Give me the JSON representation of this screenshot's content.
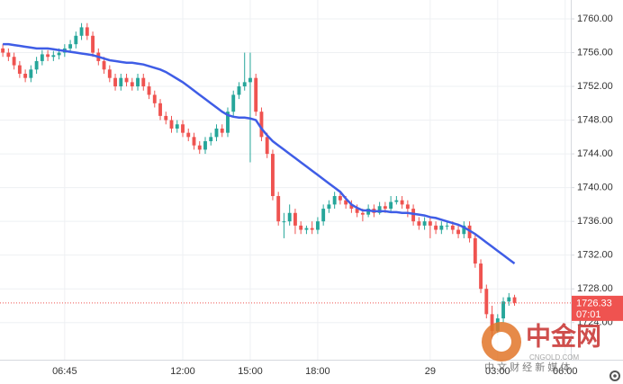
{
  "chart_data": {
    "type": "candlestick",
    "xlim": [
      -0.5,
      101
    ],
    "ylim": [
      1719.6,
      1762.24
    ],
    "grid": true,
    "xticks": [
      {
        "value": 11,
        "label": "06:45"
      },
      {
        "value": 32,
        "label": "12:00"
      },
      {
        "value": 44,
        "label": "15:00"
      },
      {
        "value": 56,
        "label": "18:00"
      },
      {
        "value": 76,
        "label": "29"
      },
      {
        "value": 88,
        "label": "03:00"
      },
      {
        "value": 100,
        "label": "06:00"
      }
    ],
    "yticks": [
      {
        "value": 1724,
        "label": "1724.00"
      },
      {
        "value": 1728,
        "label": "1728.00"
      },
      {
        "value": 1732,
        "label": "1732.00"
      },
      {
        "value": 1736,
        "label": "1736.00"
      },
      {
        "value": 1740,
        "label": "1740.00"
      },
      {
        "value": 1744,
        "label": "1744.00"
      },
      {
        "value": 1748,
        "label": "1748.00"
      },
      {
        "value": 1752,
        "label": "1752.00"
      },
      {
        "value": 1756,
        "label": "1756.00"
      },
      {
        "value": 1760,
        "label": "1760.00"
      }
    ],
    "candles": {
      "up_color": "#26a69a",
      "down_color": "#ef5350",
      "ohlc": [
        [
          1756.5,
          1757,
          1755.5,
          1756
        ],
        [
          1756,
          1756.5,
          1755,
          1755.5
        ],
        [
          1755.5,
          1756,
          1754,
          1754.5
        ],
        [
          1754.5,
          1755,
          1753,
          1753.5
        ],
        [
          1753.5,
          1754,
          1752.5,
          1753
        ],
        [
          1753,
          1754.5,
          1752.5,
          1754
        ],
        [
          1754,
          1755.5,
          1753.5,
          1755
        ],
        [
          1755,
          1756.3,
          1754.5,
          1755.8
        ],
        [
          1755.8,
          1756.3,
          1755,
          1755.5
        ],
        [
          1755.5,
          1756.2,
          1755,
          1755.7
        ],
        [
          1755.7,
          1756.5,
          1755.2,
          1756
        ],
        [
          1756,
          1757,
          1755.5,
          1756.5
        ],
        [
          1756.5,
          1757.5,
          1756,
          1757
        ],
        [
          1757,
          1758.5,
          1756.5,
          1758
        ],
        [
          1758,
          1759.5,
          1757.5,
          1759
        ],
        [
          1759,
          1759.5,
          1757.5,
          1758
        ],
        [
          1758,
          1758.5,
          1755.5,
          1756
        ],
        [
          1756,
          1756.5,
          1754.5,
          1755
        ],
        [
          1755,
          1755.5,
          1753.5,
          1754
        ],
        [
          1754,
          1754.5,
          1752.5,
          1753
        ],
        [
          1753,
          1753.5,
          1751.5,
          1752
        ],
        [
          1752,
          1753.5,
          1751.5,
          1753
        ],
        [
          1753,
          1753.5,
          1752,
          1752.5
        ],
        [
          1752.5,
          1753,
          1751.5,
          1752
        ],
        [
          1752,
          1753.5,
          1751.5,
          1753
        ],
        [
          1753,
          1753.5,
          1751.5,
          1752
        ],
        [
          1752,
          1752.5,
          1750.5,
          1751
        ],
        [
          1751,
          1751.5,
          1749.5,
          1750
        ],
        [
          1750,
          1750.5,
          1748,
          1748.5
        ],
        [
          1748.5,
          1749,
          1747.5,
          1748
        ],
        [
          1748,
          1748.5,
          1746.5,
          1747
        ],
        [
          1747,
          1748,
          1746.5,
          1747.5
        ],
        [
          1747.5,
          1748,
          1746,
          1746.5
        ],
        [
          1746.5,
          1747,
          1745.5,
          1746
        ],
        [
          1746,
          1746.5,
          1744.5,
          1745
        ],
        [
          1745,
          1745.5,
          1744,
          1744.5
        ],
        [
          1744.5,
          1746,
          1744,
          1745.5
        ],
        [
          1745.5,
          1746.5,
          1745,
          1746
        ],
        [
          1746,
          1747.5,
          1745.5,
          1747
        ],
        [
          1747,
          1747.5,
          1746,
          1746.5
        ],
        [
          1746.5,
          1749.5,
          1746,
          1749
        ],
        [
          1749,
          1751.5,
          1748.5,
          1751
        ],
        [
          1751,
          1752.5,
          1750.5,
          1752
        ],
        [
          1752,
          1756,
          1751.5,
          1752.5
        ],
        [
          1752.5,
          1756,
          1743,
          1753
        ],
        [
          1753,
          1753.5,
          1748.5,
          1749
        ],
        [
          1749,
          1749.5,
          1745.5,
          1746
        ],
        [
          1746,
          1746.5,
          1743.5,
          1744
        ],
        [
          1744,
          1744.5,
          1738.5,
          1739
        ],
        [
          1739,
          1739.5,
          1735.5,
          1736
        ],
        [
          1736,
          1737,
          1734,
          1736
        ],
        [
          1736,
          1738,
          1735.5,
          1737
        ],
        [
          1737,
          1737.5,
          1734.5,
          1735.5
        ],
        [
          1735.5,
          1736,
          1734.5,
          1735
        ],
        [
          1735,
          1735.5,
          1734.5,
          1735.2
        ],
        [
          1735.2,
          1736,
          1734.5,
          1735
        ],
        [
          1735,
          1736.5,
          1734.5,
          1736
        ],
        [
          1736,
          1738,
          1735.5,
          1737.5
        ],
        [
          1737.5,
          1738.5,
          1737,
          1738
        ],
        [
          1738,
          1739.5,
          1737.5,
          1739
        ],
        [
          1739,
          1739.5,
          1738,
          1738.5
        ],
        [
          1738.5,
          1739,
          1737.5,
          1738
        ],
        [
          1738,
          1738.5,
          1737,
          1737.5
        ],
        [
          1737.5,
          1738,
          1736.5,
          1737
        ],
        [
          1737,
          1737.5,
          1736,
          1736.8
        ],
        [
          1736.8,
          1738,
          1736.5,
          1737.5
        ],
        [
          1737.5,
          1738,
          1736.5,
          1737
        ],
        [
          1737,
          1738.3,
          1736.8,
          1737.8
        ],
        [
          1737.8,
          1738.3,
          1737,
          1737.5
        ],
        [
          1737.5,
          1739,
          1737.2,
          1738.3
        ],
        [
          1738.3,
          1739,
          1738,
          1738.5
        ],
        [
          1738.5,
          1739,
          1737.5,
          1738
        ],
        [
          1738,
          1738.5,
          1736.5,
          1737.5
        ],
        [
          1737.5,
          1738,
          1735.5,
          1736
        ],
        [
          1736,
          1736.5,
          1735,
          1735.5
        ],
        [
          1735.5,
          1736.5,
          1735,
          1736
        ],
        [
          1736,
          1736.5,
          1734,
          1735.5
        ],
        [
          1735.5,
          1736,
          1734.5,
          1735
        ],
        [
          1735,
          1736,
          1734.5,
          1735.5
        ],
        [
          1735.5,
          1736,
          1735,
          1735.5
        ],
        [
          1735.5,
          1736,
          1734.5,
          1735
        ],
        [
          1735,
          1735.5,
          1734,
          1734.5
        ],
        [
          1734.5,
          1736,
          1734,
          1735.5
        ],
        [
          1735.5,
          1736,
          1733.5,
          1734
        ],
        [
          1734,
          1734.5,
          1730.5,
          1731
        ],
        [
          1731,
          1731.5,
          1727.5,
          1728
        ],
        [
          1728,
          1728.5,
          1724.5,
          1725
        ],
        [
          1725,
          1726,
          1722,
          1723
        ],
        [
          1723,
          1725,
          1722.5,
          1724.5
        ],
        [
          1724.5,
          1727,
          1724,
          1726.5
        ],
        [
          1726.5,
          1727.5,
          1726,
          1727
        ],
        [
          1727,
          1727.3,
          1726,
          1726.33
        ]
      ]
    },
    "moving_average": {
      "color": "#3f5de6",
      "values": [
        1757,
        1757,
        1756.9,
        1756.8,
        1756.7,
        1756.6,
        1756.5,
        1756.5,
        1756.5,
        1756.4,
        1756.3,
        1756.2,
        1756.1,
        1756,
        1755.9,
        1755.8,
        1755.7,
        1755.5,
        1755.3,
        1755.1,
        1755,
        1754.9,
        1754.8,
        1754.8,
        1754.7,
        1754.6,
        1754.4,
        1754.2,
        1754,
        1753.7,
        1753.3,
        1752.9,
        1752.5,
        1752,
        1751.5,
        1751,
        1750.5,
        1750,
        1749.5,
        1749,
        1748.6,
        1748.4,
        1748.3,
        1748.3,
        1748.2,
        1748,
        1747,
        1746.2,
        1745.5,
        1745,
        1744.5,
        1744,
        1743.5,
        1743,
        1742.5,
        1742,
        1741.5,
        1741,
        1740.5,
        1740,
        1739.5,
        1738.7,
        1738,
        1737.6,
        1737.3,
        1737.3,
        1737.2,
        1737.2,
        1737.2,
        1737.1,
        1737.1,
        1737,
        1737,
        1736.9,
        1736.8,
        1736.7,
        1736.5,
        1736.4,
        1736.2,
        1736,
        1735.8,
        1735.6,
        1735.3,
        1734.9,
        1734.5,
        1734,
        1733.5,
        1733,
        1732.5,
        1732,
        1731.5,
        1731
      ]
    },
    "last_price": 1726.33,
    "countdown": "07:01",
    "last_price_color": "#ef5350",
    "watermark": {
      "logo": "中金网",
      "site": "CNGOLD.COM",
      "slogan": "中 文 财 经 新 媒 体"
    }
  }
}
